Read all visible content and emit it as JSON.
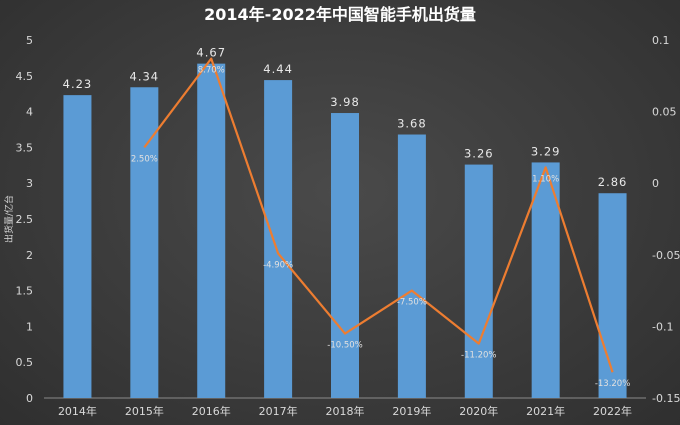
{
  "chart_data": {
    "type": "bar",
    "title": "2014年-2022年中国智能手机出货量",
    "ylabel": "出货量/亿台",
    "y2label": "",
    "categories": [
      "2014年",
      "2015年",
      "2016年",
      "2017年",
      "2018年",
      "2019年",
      "2020年",
      "2021年",
      "2022年"
    ],
    "ylim": [
      0,
      5
    ],
    "yticks": [
      "0",
      "0.5",
      "1",
      "1.5",
      "2",
      "2.5",
      "3",
      "3.5",
      "4",
      "4.5",
      "5"
    ],
    "y2lim": [
      -0.15,
      0.1
    ],
    "y2ticks": [
      "-0.15",
      "-0.1",
      "-0.05",
      "0",
      "0.05",
      "0.1"
    ],
    "grid": false,
    "series": [
      {
        "type": "bar",
        "color": "#5b9bd5",
        "values": [
          4.23,
          4.34,
          4.67,
          4.44,
          3.98,
          3.68,
          3.26,
          3.29,
          2.86
        ],
        "labels": [
          "4.23",
          "4.34",
          "4.67",
          "4.44",
          "3.98",
          "3.68",
          "3.26",
          "3.29",
          "2.86"
        ]
      },
      {
        "type": "line",
        "axis": "secondary",
        "color": "#ed7d31",
        "values": [
          null,
          0.025,
          0.087,
          -0.049,
          -0.105,
          -0.075,
          -0.112,
          0.011,
          -0.132
        ],
        "labels": [
          "",
          "2.50%",
          "8.70%",
          "-4.90%",
          "-10.50%",
          "-7.50%",
          "-11.20%",
          "1.10%",
          "-13.20%"
        ]
      }
    ]
  }
}
